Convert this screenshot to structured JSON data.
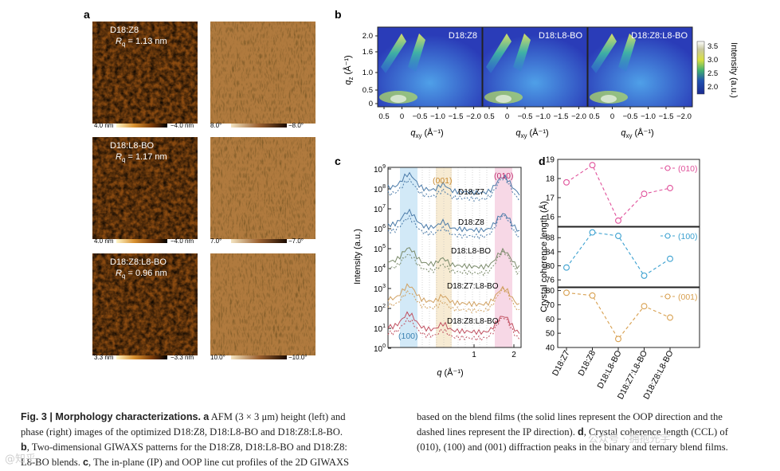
{
  "panels": {
    "a": {
      "letter": "a",
      "samples": [
        {
          "name": "D18:Z8",
          "rq_label": "R",
          "rq_sub": "q",
          "rq_value": " = 1.13 nm",
          "height_max": "4.0 nm",
          "height_min": "−4.0 nm",
          "phase_max": "8.0°",
          "phase_min": "−8.0°"
        },
        {
          "name": "D18:L8-BO",
          "rq_label": "R",
          "rq_sub": "q",
          "rq_value": " = 1.17 nm",
          "height_max": "4.0 nm",
          "height_min": "−4.0 nm",
          "phase_max": "7.0°",
          "phase_min": "−7.0°"
        },
        {
          "name": "D18:Z8:L8-BO",
          "rq_label": "R",
          "rq_sub": "q",
          "rq_value": " = 0.96 nm",
          "height_max": "3.3 nm",
          "height_min": "−3.3 nm",
          "phase_max": "10.0°",
          "phase_min": "−10.0°"
        }
      ]
    },
    "b": {
      "letter": "b",
      "titles": [
        "D18:Z8",
        "D18:L8-BO",
        "D18:Z8:L8-BO"
      ],
      "qz_ticks": [
        "2.0",
        "1.6",
        "1.0",
        "0.5",
        "0"
      ],
      "qxy_ticks": [
        "0.5",
        "0",
        "−0.5",
        "−1.0",
        "−1.5",
        "−2.0"
      ],
      "ylabel": "qz (Å⁻¹)",
      "xlabel": "qxy (Å⁻¹)",
      "colorbar_ticks": [
        "3.5",
        "3.0",
        "2.5",
        "2.0"
      ],
      "colorbar_label": "Intensity (a.u.)"
    },
    "c": {
      "letter": "c",
      "ylabel": "Intensity (a.u.)",
      "xlabel": "q (Å⁻¹)",
      "ytick_exps": [
        "9",
        "8",
        "7",
        "6",
        "5",
        "4",
        "3",
        "2",
        "1",
        "0"
      ],
      "xticks": [
        "1",
        "2"
      ],
      "peak_labels": {
        "p001": "(001)",
        "p010": "(010)",
        "p100": "(100)"
      },
      "samples": [
        "D18:Z7",
        "D18:Z8",
        "D18:L8-BO",
        "D18:Z7:L8-BO",
        "D18:Z8:L8-BO"
      ]
    },
    "d": {
      "letter": "d",
      "ylabel": "Crystal coherence length (Å)"
    }
  },
  "chart_data": {
    "type": "line",
    "categories": [
      "D18:Z7",
      "D18:Z8",
      "D18:L8-BO",
      "D18:Z7:L8-BO",
      "D18:Z8:L8-BO"
    ],
    "series": [
      {
        "name": "(010)",
        "values": [
          17.8,
          18.7,
          15.8,
          17.2,
          17.5
        ],
        "ylim": [
          15.5,
          19
        ],
        "yticks": [
          16,
          17,
          18,
          19
        ],
        "color": "#e0509a"
      },
      {
        "name": "(100)",
        "values": [
          79.5,
          89.5,
          88.5,
          77.2,
          82.0
        ],
        "ylim": [
          74,
          91
        ],
        "yticks": [
          76,
          80,
          84,
          88
        ],
        "color": "#3aa0d0"
      },
      {
        "name": "(001)",
        "values": [
          78.5,
          76.5,
          46.0,
          69.0,
          61.0
        ],
        "ylim": [
          40,
          82
        ],
        "yticks": [
          40,
          50,
          60,
          70,
          80
        ],
        "color": "#d8a050"
      }
    ]
  },
  "caption": {
    "fig": "Fig. 3 | Morphology characterizations.",
    "left_l1_rest": " AFM (3 × 3 μm) height (left) and",
    "left_l2": "phase (right) images of the optimized D18:Z8, D18:L8-BO and D18:Z8:L8-BO.",
    "left_l3_b": "b",
    "left_l3_rest": ", Two-dimensional GIWAXS patterns for the D18:Z8, D18:L8-BO and D18:Z8:",
    "left_l4_pre": "L8-BO blends. ",
    "left_l4_c": "c",
    "left_l4_rest": ", The in-plane (IP) and OOP line cut profiles of the 2D GIWAXS",
    "right_l1": "based on the blend films (the solid lines represent the OOP direction and the",
    "right_l2_pre": "dashed lines represent the IP direction). ",
    "right_l2_d": "d",
    "right_l2_rest": ", Crystal coherence length (CCL) of",
    "right_l3": "(010), (100) and (001) diffraction peaks in the binary and ternary blend films."
  },
  "watermarks": [
    "公众号 · 拥抱光宇",
    "@知乎"
  ]
}
